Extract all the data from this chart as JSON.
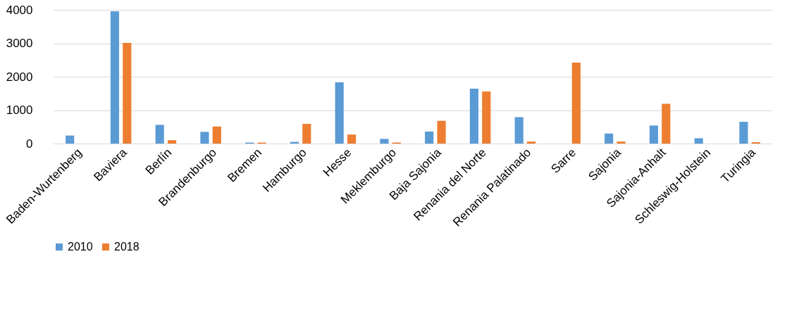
{
  "chart_data": {
    "type": "bar",
    "categories": [
      "Baden-Wurtenberg",
      "Baviera",
      "Berlín",
      "Brandenburgo",
      "Bremen",
      "Hamburgo",
      "Hesse",
      "Meklemburgo",
      "Baja Sajonia",
      "Renania del Norte",
      "Renania Palatinado",
      "Sarre",
      "Sajonia",
      "Sajonia-Anhalt",
      "Schleswig-Holstein",
      "Turingia"
    ],
    "series": [
      {
        "name": "2010",
        "color": "#5b9bd5",
        "values": [
          240,
          3960,
          560,
          350,
          30,
          50,
          1830,
          140,
          360,
          1640,
          790,
          null,
          300,
          540,
          160,
          650
        ]
      },
      {
        "name": "2018",
        "color": "#ed7d31",
        "values": [
          null,
          3010,
          100,
          510,
          30,
          590,
          270,
          30,
          680,
          1560,
          60,
          2420,
          60,
          1190,
          null,
          40
        ]
      }
    ],
    "ylim": [
      0,
      4000
    ],
    "yticks": [
      0,
      1000,
      2000,
      3000,
      4000
    ],
    "grid": "y",
    "legend": "bottom"
  }
}
